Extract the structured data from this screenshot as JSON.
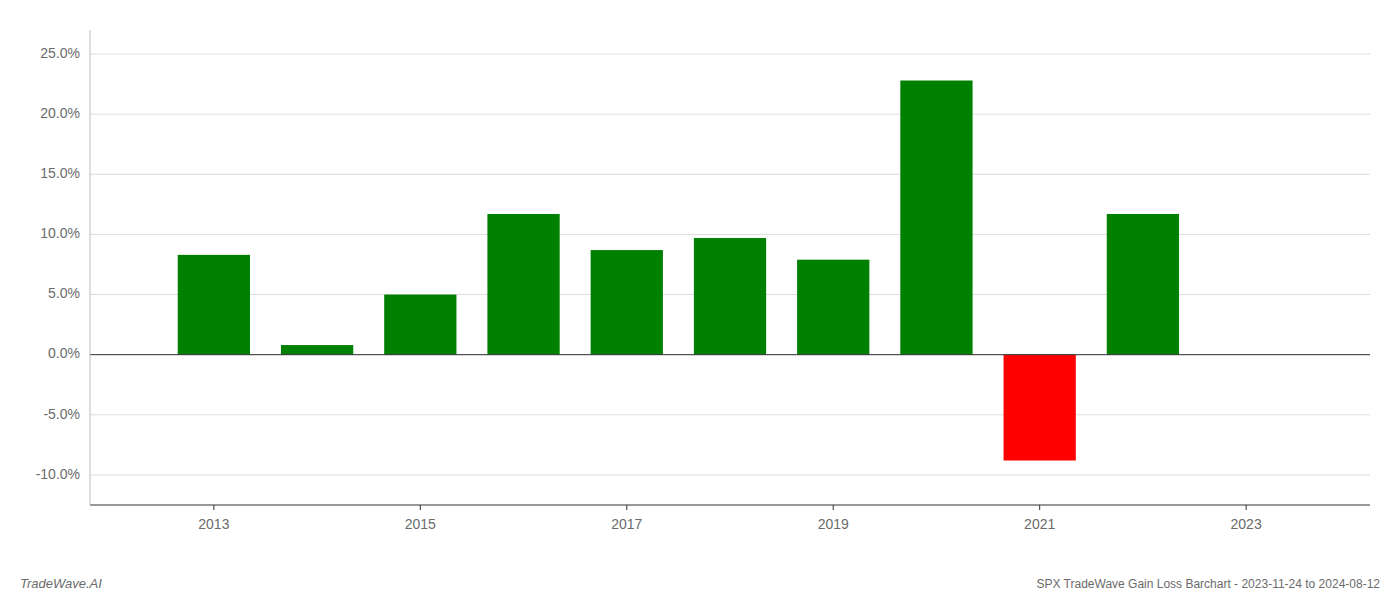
{
  "chart_data": {
    "type": "bar",
    "x": [
      2013,
      2014,
      2015,
      2016,
      2017,
      2018,
      2019,
      2020,
      2021,
      2022
    ],
    "values": [
      0.083,
      0.008,
      0.05,
      0.117,
      0.087,
      0.097,
      0.079,
      0.228,
      -0.088,
      0.117
    ],
    "colors": [
      "#008000",
      "#008000",
      "#008000",
      "#008000",
      "#008000",
      "#008000",
      "#008000",
      "#008000",
      "#ff0000",
      "#008000"
    ],
    "xlim": [
      2011.8,
      2024.2
    ],
    "xticks": [
      2013,
      2015,
      2017,
      2019,
      2021,
      2023
    ],
    "ylim": [
      -0.125,
      0.27
    ],
    "yticks": [
      {
        "value": -0.1,
        "label": "-10.0%"
      },
      {
        "value": -0.05,
        "label": "-5.0%"
      },
      {
        "value": 0.0,
        "label": "0.0%"
      },
      {
        "value": 0.05,
        "label": "5.0%"
      },
      {
        "value": 0.1,
        "label": "10.0%"
      },
      {
        "value": 0.15,
        "label": "15.0%"
      },
      {
        "value": 0.2,
        "label": "20.0%"
      },
      {
        "value": 0.25,
        "label": "25.0%"
      }
    ],
    "grid": true,
    "annotations": [
      "TradeWave.AI",
      "SPX TradeWave Gain Loss Barchart - 2023-11-24 to 2024-08-12"
    ]
  }
}
